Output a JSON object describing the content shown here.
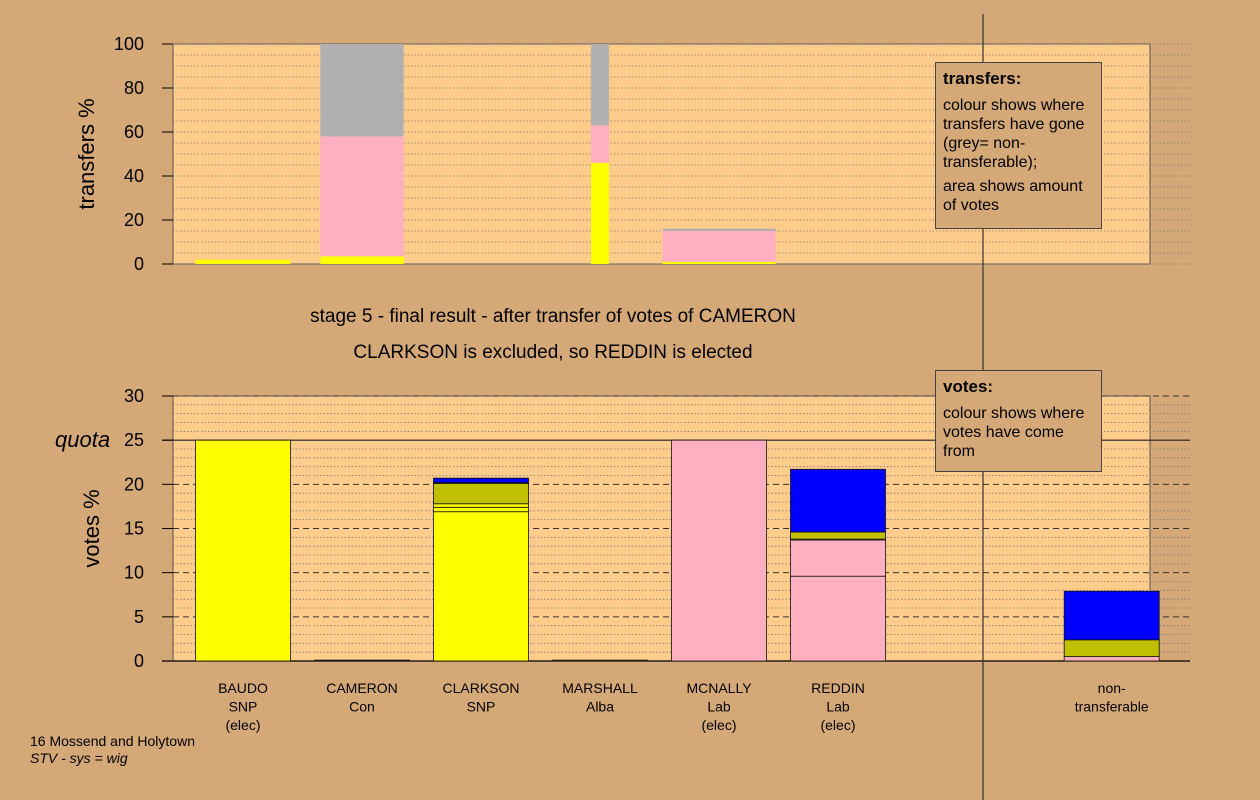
{
  "title": {
    "line1": "stage 5 - final result - after transfer of votes of CAMERON",
    "line2": "CLARKSON is excluded, so REDDIN is elected"
  },
  "footer": {
    "ward": "16 Mossend and Holytown",
    "system": "STV - sys = wig"
  },
  "colors": {
    "background": "#d4a877",
    "plot_area": "#ffcc8c",
    "snp": "#ffff00",
    "lab": "#ffb0c0",
    "con": "#0000ff",
    "alba": "#c0c000",
    "nontransferable": "#b0b0b0"
  },
  "legend_transfers": {
    "title": "transfers:",
    "line1": "colour shows where transfers have gone (grey= non-transferable);",
    "line2": "area shows amount of votes"
  },
  "legend_votes": {
    "title": "votes:",
    "line1": "colour shows where votes have come from"
  },
  "chart_data": [
    {
      "type": "bar",
      "stacked": true,
      "ylabel": "transfers %",
      "ylim": [
        0,
        100
      ],
      "yticks": [
        0,
        20,
        40,
        60,
        80,
        100
      ],
      "categories": [
        "BAUDO",
        "CAMERON",
        "CLARKSON",
        "MARSHALL",
        "MCNALLY",
        "REDDIN"
      ],
      "bars": [
        {
          "category": "BAUDO",
          "width_share": 0.8,
          "segments": [
            {
              "color": "snp",
              "from": 0,
              "to": 2
            }
          ]
        },
        {
          "category": "CAMERON",
          "width_share": 0.7,
          "segments": [
            {
              "color": "snp",
              "from": 0,
              "to": 3.5
            },
            {
              "color": "lab",
              "from": 3.5,
              "to": 58
            },
            {
              "color": "nontransferable",
              "from": 58,
              "to": 100
            }
          ]
        },
        {
          "category": "MARSHALL",
          "width_share": 0.15,
          "segments": [
            {
              "color": "snp",
              "from": 0,
              "to": 46
            },
            {
              "color": "lab",
              "from": 46,
              "to": 63
            },
            {
              "color": "nontransferable",
              "from": 63,
              "to": 100
            }
          ]
        },
        {
          "category": "MCNALLY",
          "width_share": 0.95,
          "segments": [
            {
              "color": "snp",
              "from": 0,
              "to": 1
            },
            {
              "color": "lab",
              "from": 1,
              "to": 15
            },
            {
              "color": "nontransferable",
              "from": 15,
              "to": 16
            }
          ]
        }
      ]
    },
    {
      "type": "bar",
      "stacked": true,
      "ylabel": "votes %",
      "ylim": [
        0,
        30
      ],
      "yticks": [
        0,
        5,
        10,
        15,
        20,
        25,
        30
      ],
      "quota": 25,
      "quota_label": "quota",
      "candidates": [
        {
          "name": "BAUDO",
          "party": "SNP",
          "status": "(elec)",
          "segments": [
            {
              "color": "snp",
              "from": 0,
              "to": 25
            }
          ]
        },
        {
          "name": "CAMERON",
          "party": "Con",
          "status": "",
          "segments": [
            {
              "color": "con",
              "from": 0,
              "to": 0.1
            }
          ]
        },
        {
          "name": "CLARKSON",
          "party": "SNP",
          "status": "",
          "segments": [
            {
              "color": "snp",
              "from": 0,
              "to": 16.9
            },
            {
              "color": "snp",
              "from": 16.9,
              "to": 17.4
            },
            {
              "color": "snp",
              "from": 17.4,
              "to": 17.8
            },
            {
              "color": "alba",
              "from": 17.8,
              "to": 20.1
            },
            {
              "color": "lab",
              "from": 20.1,
              "to": 20.2
            },
            {
              "color": "con",
              "from": 20.2,
              "to": 20.7
            }
          ]
        },
        {
          "name": "MARSHALL",
          "party": "Alba",
          "status": "",
          "segments": [
            {
              "color": "alba",
              "from": 0,
              "to": 0.1
            }
          ]
        },
        {
          "name": "MCNALLY",
          "party": "Lab",
          "status": "(elec)",
          "segments": [
            {
              "color": "lab",
              "from": 0,
              "to": 25
            }
          ]
        },
        {
          "name": "REDDIN",
          "party": "Lab",
          "status": "(elec)",
          "segments": [
            {
              "color": "lab",
              "from": 0,
              "to": 9.6
            },
            {
              "color": "lab",
              "from": 9.6,
              "to": 13.7
            },
            {
              "color": "snp",
              "from": 13.7,
              "to": 13.8
            },
            {
              "color": "alba",
              "from": 13.8,
              "to": 14.6
            },
            {
              "color": "con",
              "from": 14.6,
              "to": 21.7
            }
          ]
        },
        {
          "name": "non-",
          "party": "transferable",
          "status": "",
          "segments": [
            {
              "color": "lab",
              "from": 0,
              "to": 0.5
            },
            {
              "color": "alba",
              "from": 0.5,
              "to": 2.4
            },
            {
              "color": "con",
              "from": 2.4,
              "to": 7.9
            }
          ]
        }
      ]
    }
  ]
}
